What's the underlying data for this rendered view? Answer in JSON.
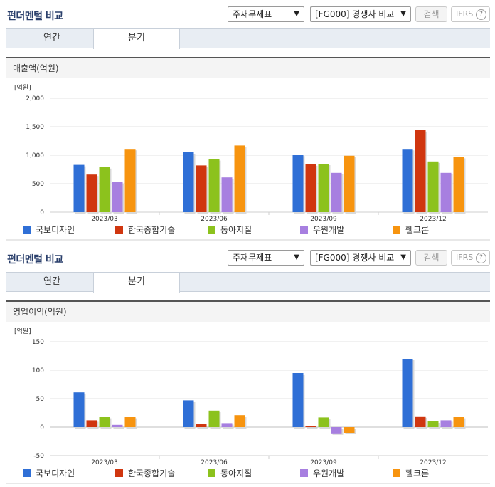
{
  "sections": [
    {
      "title": "펀더멘털 비교",
      "statement_select": "주재무제표",
      "compare_select": "[FG000] 경쟁사 비교",
      "search_label": "검색",
      "ifrs_label": "IFRS",
      "help_label": "?",
      "tabs": [
        "연간",
        "분기"
      ],
      "active_tab": "분기",
      "chart_title": "매출액(억원)"
    },
    {
      "title": "펀더멘털 비교",
      "statement_select": "주재무제표",
      "compare_select": "[FG000] 경쟁사 비교",
      "search_label": "검색",
      "ifrs_label": "IFRS",
      "help_label": "?",
      "tabs": [
        "연간",
        "분기"
      ],
      "active_tab": "분기",
      "chart_title": "영업이익(억원)"
    }
  ],
  "colors": {
    "series": [
      "#2f6fd6",
      "#d0360f",
      "#8cc21d",
      "#a77fe0",
      "#f7940f"
    ]
  },
  "chart_data": [
    {
      "type": "bar",
      "title": "매출액(억원)",
      "unit_label": "[억원]",
      "categories": [
        "2023/03",
        "2023/06",
        "2023/09",
        "2023/12"
      ],
      "ylim": [
        0,
        2000
      ],
      "yticks": [
        0,
        500,
        1000,
        1500,
        2000
      ],
      "ytick_labels": [
        "0",
        "500",
        "1,000",
        "1,500",
        "2,000"
      ],
      "legend_position": "bottom",
      "series": [
        {
          "name": "국보디자인",
          "values": [
            830,
            1050,
            1010,
            1110
          ]
        },
        {
          "name": "한국종합기술",
          "values": [
            660,
            820,
            840,
            1440
          ]
        },
        {
          "name": "동아지질",
          "values": [
            790,
            930,
            850,
            890
          ]
        },
        {
          "name": "우원개발",
          "values": [
            530,
            610,
            690,
            690
          ]
        },
        {
          "name": "휄크론",
          "values": [
            1110,
            1170,
            990,
            970
          ]
        }
      ]
    },
    {
      "type": "bar",
      "title": "영업이익(억원)",
      "unit_label": "[억원]",
      "categories": [
        "2023/03",
        "2023/06",
        "2023/09",
        "2023/12"
      ],
      "ylim": [
        -50,
        150
      ],
      "yticks": [
        -50,
        0,
        50,
        100,
        150
      ],
      "ytick_labels": [
        "-50",
        "0",
        "50",
        "100",
        "150"
      ],
      "legend_position": "bottom",
      "series": [
        {
          "name": "국보디자인",
          "values": [
            61,
            47,
            95,
            120
          ]
        },
        {
          "name": "한국종합기술",
          "values": [
            12,
            5,
            2,
            19
          ]
        },
        {
          "name": "동아지질",
          "values": [
            18,
            29,
            17,
            10
          ]
        },
        {
          "name": "우원개발",
          "values": [
            4,
            7,
            -11,
            12
          ]
        },
        {
          "name": "휄크론",
          "values": [
            18,
            21,
            -10,
            18
          ]
        }
      ]
    }
  ]
}
